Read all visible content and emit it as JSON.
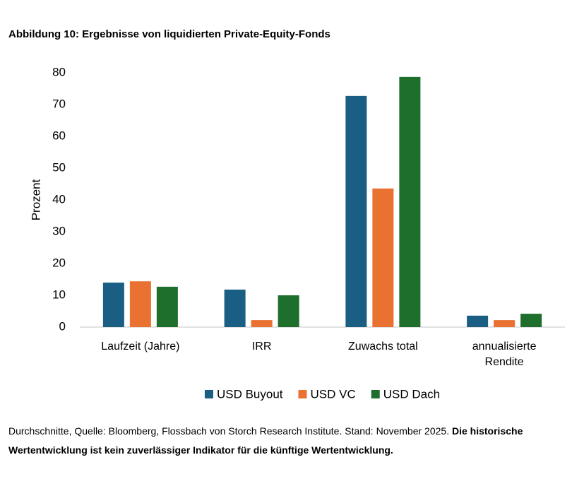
{
  "title": "Abbildung 10: Ergebnisse von liquidierten Private-Equity-Fonds",
  "chart_data": {
    "type": "bar",
    "y_label": "Prozent",
    "categories": [
      "Laufzeit (Jahre)",
      "IRR",
      "Zuwachs total",
      "annualisierte Rendite"
    ],
    "series": [
      {
        "name": "USD Buyout",
        "color": "#1a5e84",
        "values": [
          14.0,
          11.8,
          72.7,
          3.6
        ]
      },
      {
        "name": "USD VC",
        "color": "#e97132",
        "values": [
          14.4,
          2.2,
          43.6,
          2.2
        ]
      },
      {
        "name": "USD Dach",
        "color": "#1e6e2c",
        "values": [
          12.7,
          10.0,
          78.7,
          4.2
        ]
      }
    ],
    "ylim": [
      0,
      80
    ],
    "yticks": [
      0,
      10,
      20,
      30,
      40,
      50,
      60,
      70,
      80
    ],
    "grid": false,
    "legend": "bottom"
  },
  "footnote": {
    "text": "Durchschnitte, Quelle: Bloomberg, Flossbach von Storch Research Institute. Stand: November 2025.",
    "bold": "Die historische Wertentwicklung ist kein zuverlässiger Indikator für die künftige Wertentwicklung."
  }
}
